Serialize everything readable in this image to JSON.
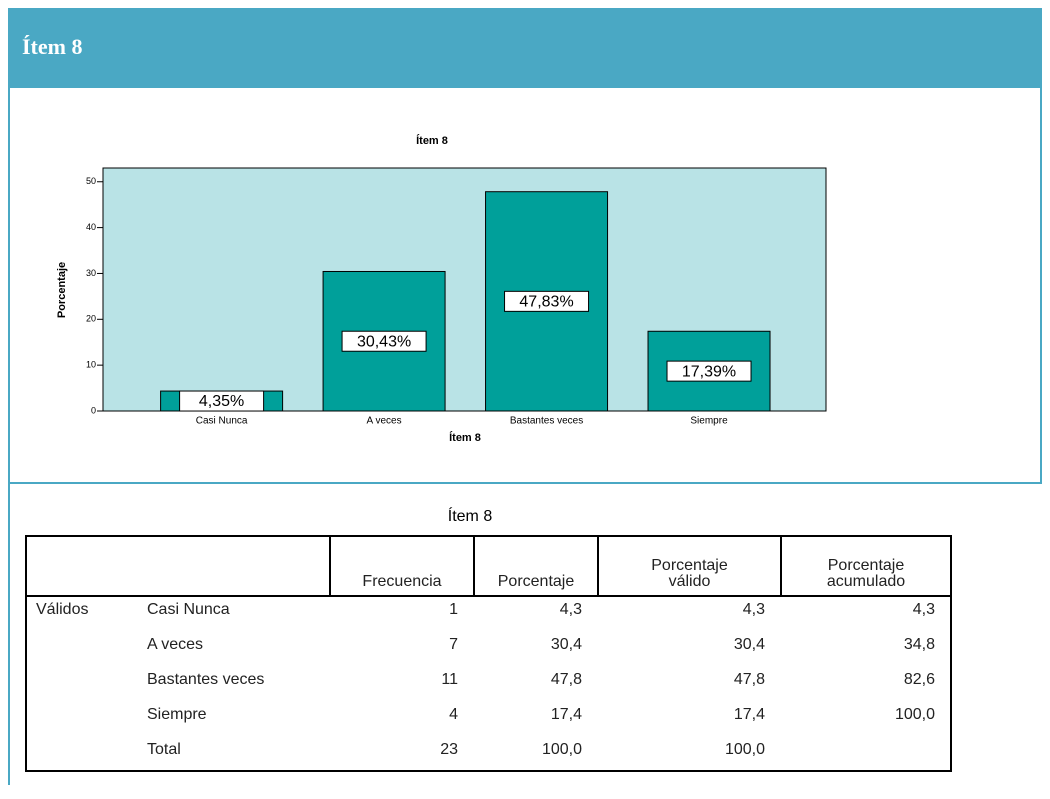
{
  "header": {
    "title": "Ítem 8"
  },
  "chart_data": {
    "type": "bar",
    "title": "Ítem 8",
    "x_label": "Ítem 8",
    "y_label": "Porcentaje",
    "categories": [
      "Casi Nunca",
      "A veces",
      "Bastantes veces",
      "Siempre"
    ],
    "values": [
      4.35,
      30.43,
      47.83,
      17.39
    ],
    "value_labels": [
      "4,35%",
      "30,43%",
      "47,83%",
      "17,39%"
    ],
    "color": "#00a09a",
    "background": "#b9e3e6",
    "ylim": [
      0,
      53
    ],
    "yticks": [
      0,
      10,
      20,
      30,
      40,
      50
    ]
  },
  "table": {
    "title": "Ítem 8",
    "columns": [
      "Frecuencia",
      "Porcentaje",
      "Porcentaje válido",
      "Porcentaje acumulado"
    ],
    "group": "Válidos",
    "rows": [
      [
        "Casi Nunca",
        "1",
        "4,3",
        "4,3",
        "4,3"
      ],
      [
        "A veces",
        "7",
        "30,4",
        "30,4",
        "34,8"
      ],
      [
        "Bastantes veces",
        "11",
        "47,8",
        "47,8",
        "82,6"
      ],
      [
        "Siempre",
        "4",
        "17,4",
        "17,4",
        "100,0"
      ],
      [
        "Total",
        "23",
        "100,0",
        "100,0"
      ]
    ]
  }
}
